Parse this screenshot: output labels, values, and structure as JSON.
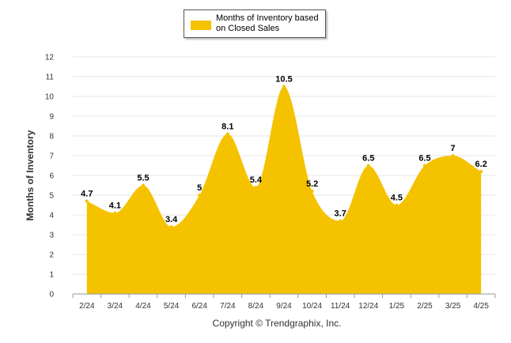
{
  "chart_data": {
    "type": "area",
    "categories": [
      "2/24",
      "3/24",
      "4/24",
      "5/24",
      "6/24",
      "7/24",
      "8/24",
      "9/24",
      "10/24",
      "11/24",
      "12/24",
      "1/25",
      "2/25",
      "3/25",
      "4/25"
    ],
    "series": [
      {
        "name": "Months of Inventory based on Closed Sales",
        "values": [
          4.7,
          4.1,
          5.5,
          3.4,
          5,
          8.1,
          5.4,
          10.5,
          5.2,
          3.7,
          6.5,
          4.5,
          6.5,
          7,
          6.2
        ],
        "labels": [
          "4.7",
          "4.1",
          "5.5",
          "3.4",
          "5",
          "8.1",
          "5.4",
          "10.5",
          "5.2",
          "3.7",
          "6.5",
          "4.5",
          "6.5",
          "7",
          "6.2"
        ]
      }
    ],
    "ylabel": "Months of Inventory",
    "xlabel": "",
    "ylim": [
      0,
      12
    ],
    "yticks": [
      "0",
      "1",
      "2",
      "3",
      "4",
      "5",
      "6",
      "7",
      "8",
      "9",
      "10",
      "11",
      "12"
    ],
    "grid": true,
    "legend": "top-center",
    "color": "#F5C200"
  },
  "legend_lines": [
    "Months of Inventory based",
    "on Closed Sales"
  ],
  "copyright": "Copyright © Trendgraphix, Inc."
}
